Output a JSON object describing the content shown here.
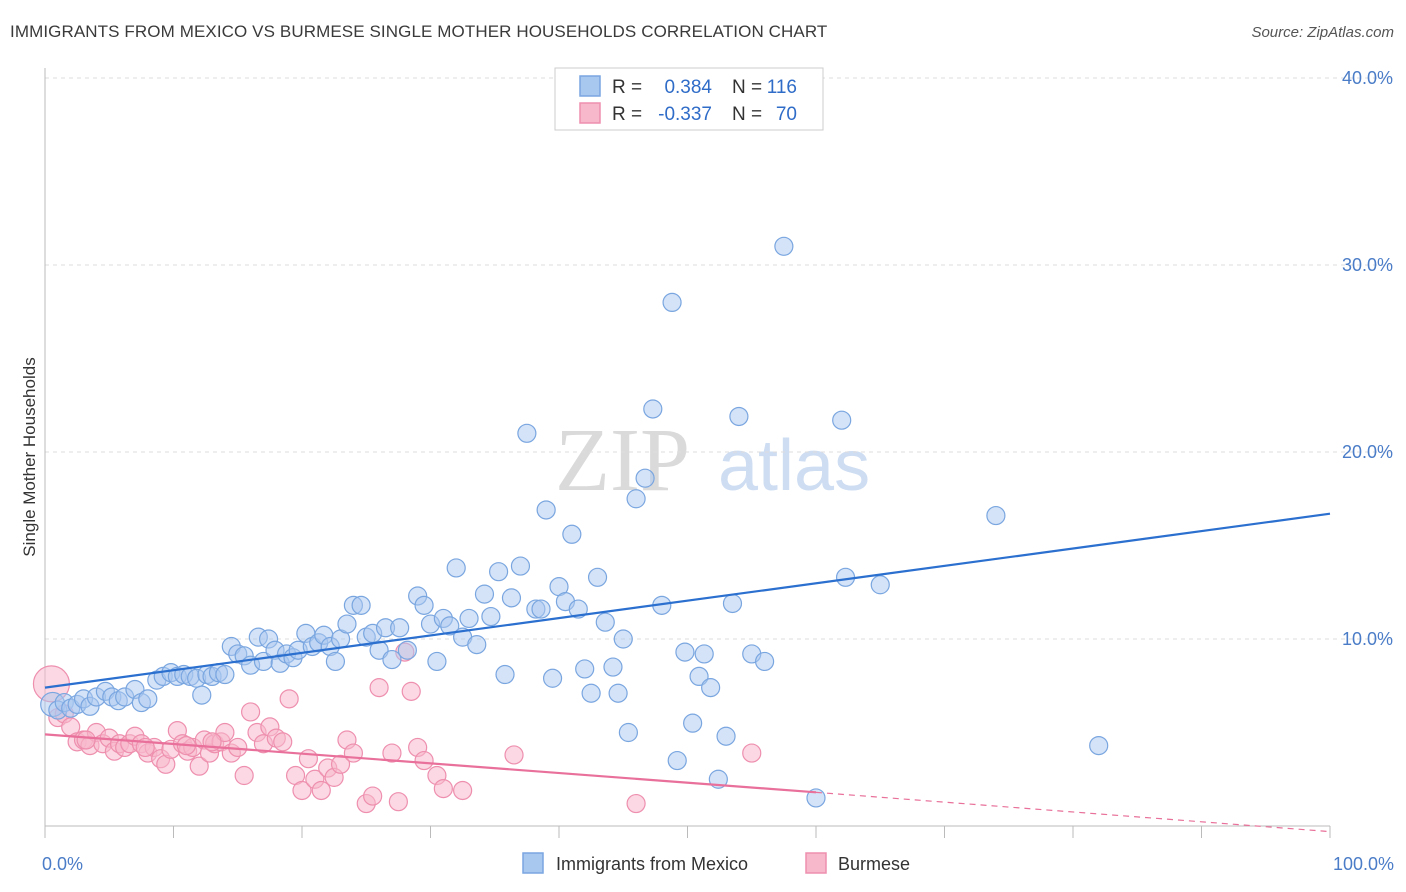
{
  "title": "IMMIGRANTS FROM MEXICO VS BURMESE SINGLE MOTHER HOUSEHOLDS CORRELATION CHART",
  "source": "Source: ZipAtlas.com",
  "watermark": {
    "zip": "ZIP",
    "atlas": "atlas"
  },
  "colors": {
    "mexico_fill": "#a9c8f0",
    "mexico_stroke": "#7aa6e0",
    "mexico_line": "#2b6fcf",
    "burmese_fill": "#f7b8cc",
    "burmese_stroke": "#ee8fae",
    "burmese_line": "#e8709a",
    "grid": "#dddddd",
    "tick_text": "#4a7cc7"
  },
  "legend": {
    "rows": [
      {
        "r_label": "R =",
        "r_value": "0.384",
        "n_label": "N =",
        "n_value": "116"
      },
      {
        "r_label": "R =",
        "r_value": "-0.337",
        "n_label": "N =",
        "n_value": "70"
      }
    ]
  },
  "chart_data": {
    "type": "scatter",
    "title": "IMMIGRANTS FROM MEXICO VS BURMESE SINGLE MOTHER HOUSEHOLDS CORRELATION CHART",
    "xlabel": "",
    "ylabel": "Single Mother Households",
    "xlim": [
      0,
      100
    ],
    "ylim": [
      0,
      40
    ],
    "x_tick_labels": [
      "0.0%",
      "100.0%"
    ],
    "y_ticks": [
      10,
      20,
      30,
      40
    ],
    "y_tick_labels": [
      "10.0%",
      "20.0%",
      "30.0%",
      "40.0%"
    ],
    "grid": true,
    "legend_position": "top-center",
    "series": [
      {
        "name": "Immigrants from Mexico",
        "r": 0.384,
        "n": 116,
        "trend": {
          "x": [
            0,
            100
          ],
          "y": [
            7.4,
            16.7
          ]
        },
        "points": [
          [
            0.6,
            6.5
          ],
          [
            1.0,
            6.2
          ],
          [
            1.5,
            6.6
          ],
          [
            2.0,
            6.3
          ],
          [
            2.5,
            6.5
          ],
          [
            3.0,
            6.8
          ],
          [
            3.5,
            6.4
          ],
          [
            4.0,
            6.9
          ],
          [
            4.7,
            7.2
          ],
          [
            5.2,
            6.9
          ],
          [
            5.7,
            6.7
          ],
          [
            6.2,
            6.9
          ],
          [
            7.0,
            7.3
          ],
          [
            7.5,
            6.6
          ],
          [
            8.0,
            6.8
          ],
          [
            8.7,
            7.8
          ],
          [
            9.2,
            8.0
          ],
          [
            9.8,
            8.2
          ],
          [
            10.3,
            8.0
          ],
          [
            10.8,
            8.1
          ],
          [
            11.3,
            8.0
          ],
          [
            11.8,
            7.9
          ],
          [
            12.2,
            7.0
          ],
          [
            12.6,
            8.1
          ],
          [
            13.0,
            8.0
          ],
          [
            13.5,
            8.2
          ],
          [
            14.0,
            8.1
          ],
          [
            14.5,
            9.6
          ],
          [
            15.0,
            9.2
          ],
          [
            15.5,
            9.1
          ],
          [
            16.0,
            8.6
          ],
          [
            16.6,
            10.1
          ],
          [
            17.0,
            8.8
          ],
          [
            17.4,
            10.0
          ],
          [
            17.9,
            9.4
          ],
          [
            18.3,
            8.7
          ],
          [
            18.8,
            9.2
          ],
          [
            19.3,
            9.0
          ],
          [
            19.7,
            9.4
          ],
          [
            20.3,
            10.3
          ],
          [
            20.8,
            9.6
          ],
          [
            21.3,
            9.8
          ],
          [
            21.7,
            10.2
          ],
          [
            22.2,
            9.6
          ],
          [
            22.6,
            8.8
          ],
          [
            23.0,
            10.0
          ],
          [
            23.5,
            10.8
          ],
          [
            24.0,
            11.8
          ],
          [
            24.6,
            11.8
          ],
          [
            25.0,
            10.1
          ],
          [
            25.5,
            10.3
          ],
          [
            26.0,
            9.4
          ],
          [
            26.5,
            10.6
          ],
          [
            27.0,
            8.9
          ],
          [
            27.6,
            10.6
          ],
          [
            28.2,
            9.4
          ],
          [
            29.0,
            12.3
          ],
          [
            29.5,
            11.8
          ],
          [
            30.0,
            10.8
          ],
          [
            30.5,
            8.8
          ],
          [
            31.0,
            11.1
          ],
          [
            31.5,
            10.7
          ],
          [
            32.0,
            13.8
          ],
          [
            32.5,
            10.1
          ],
          [
            33.0,
            11.1
          ],
          [
            33.6,
            9.7
          ],
          [
            34.2,
            12.4
          ],
          [
            34.7,
            11.2
          ],
          [
            35.3,
            13.6
          ],
          [
            35.8,
            8.1
          ],
          [
            36.3,
            12.2
          ],
          [
            37.0,
            13.9
          ],
          [
            37.5,
            21.0
          ],
          [
            38.2,
            11.6
          ],
          [
            38.6,
            11.6
          ],
          [
            39.0,
            16.9
          ],
          [
            39.5,
            7.9
          ],
          [
            40.0,
            12.8
          ],
          [
            40.5,
            12.0
          ],
          [
            41.0,
            15.6
          ],
          [
            41.5,
            11.6
          ],
          [
            42.0,
            8.4
          ],
          [
            42.5,
            7.1
          ],
          [
            43.0,
            13.3
          ],
          [
            43.6,
            10.9
          ],
          [
            44.2,
            8.5
          ],
          [
            44.6,
            7.1
          ],
          [
            45.0,
            10.0
          ],
          [
            45.4,
            5.0
          ],
          [
            46.0,
            17.5
          ],
          [
            46.7,
            18.6
          ],
          [
            47.3,
            22.3
          ],
          [
            48.0,
            11.8
          ],
          [
            48.8,
            28.0
          ],
          [
            49.2,
            3.5
          ],
          [
            49.8,
            9.3
          ],
          [
            50.4,
            5.5
          ],
          [
            50.9,
            8.0
          ],
          [
            51.3,
            9.2
          ],
          [
            51.8,
            7.4
          ],
          [
            52.4,
            2.5
          ],
          [
            53.0,
            4.8
          ],
          [
            53.5,
            11.9
          ],
          [
            54.0,
            21.9
          ],
          [
            55.0,
            9.2
          ],
          [
            56.0,
            8.8
          ],
          [
            57.5,
            31.0
          ],
          [
            60.0,
            1.5
          ],
          [
            62.0,
            21.7
          ],
          [
            62.3,
            13.3
          ],
          [
            65.0,
            12.9
          ],
          [
            74.0,
            16.6
          ],
          [
            82.0,
            4.3
          ]
        ]
      },
      {
        "name": "Burmese",
        "r": -0.337,
        "n": 70,
        "trend": {
          "x": [
            0,
            60
          ],
          "y": [
            4.9,
            1.8
          ]
        },
        "trend_dashed": {
          "x": [
            60,
            100
          ],
          "y": [
            1.8,
            -0.3
          ]
        },
        "points": [
          [
            0.5,
            7.6
          ],
          [
            1.0,
            5.8
          ],
          [
            1.5,
            6.0
          ],
          [
            2.0,
            5.3
          ],
          [
            2.5,
            4.5
          ],
          [
            3.0,
            4.6
          ],
          [
            3.5,
            4.3
          ],
          [
            4.0,
            5.0
          ],
          [
            4.5,
            4.4
          ],
          [
            5.0,
            4.7
          ],
          [
            5.4,
            4.0
          ],
          [
            5.8,
            4.4
          ],
          [
            6.2,
            4.2
          ],
          [
            6.6,
            4.4
          ],
          [
            7.0,
            4.8
          ],
          [
            7.5,
            4.4
          ],
          [
            8.0,
            3.9
          ],
          [
            8.5,
            4.2
          ],
          [
            9.0,
            3.6
          ],
          [
            9.4,
            3.3
          ],
          [
            9.8,
            4.1
          ],
          [
            10.3,
            5.1
          ],
          [
            10.7,
            4.4
          ],
          [
            11.1,
            4.0
          ],
          [
            11.5,
            4.2
          ],
          [
            12.0,
            3.2
          ],
          [
            12.4,
            4.6
          ],
          [
            12.8,
            3.9
          ],
          [
            13.2,
            4.4
          ],
          [
            13.7,
            4.5
          ],
          [
            14.0,
            5.0
          ],
          [
            14.5,
            3.9
          ],
          [
            15.0,
            4.2
          ],
          [
            15.5,
            2.7
          ],
          [
            16.0,
            6.1
          ],
          [
            16.5,
            5.0
          ],
          [
            17.0,
            4.4
          ],
          [
            17.5,
            5.3
          ],
          [
            18.0,
            4.7
          ],
          [
            18.5,
            4.5
          ],
          [
            19.0,
            6.8
          ],
          [
            19.5,
            2.7
          ],
          [
            20.0,
            1.9
          ],
          [
            20.5,
            3.6
          ],
          [
            21.0,
            2.5
          ],
          [
            21.5,
            1.9
          ],
          [
            22.0,
            3.1
          ],
          [
            22.5,
            2.6
          ],
          [
            23.0,
            3.3
          ],
          [
            23.5,
            4.6
          ],
          [
            24.0,
            3.9
          ],
          [
            25.0,
            1.2
          ],
          [
            25.5,
            1.6
          ],
          [
            26.0,
            7.4
          ],
          [
            27.0,
            3.9
          ],
          [
            27.5,
            1.3
          ],
          [
            28.0,
            9.3
          ],
          [
            28.5,
            7.2
          ],
          [
            29.0,
            4.2
          ],
          [
            29.5,
            3.5
          ],
          [
            30.5,
            2.7
          ],
          [
            31.0,
            2.0
          ],
          [
            32.5,
            1.9
          ],
          [
            36.5,
            3.8
          ],
          [
            46.0,
            1.2
          ],
          [
            55.0,
            3.9
          ],
          [
            3.2,
            4.6
          ],
          [
            7.8,
            4.2
          ],
          [
            13.0,
            4.5
          ],
          [
            11.0,
            4.3
          ]
        ]
      }
    ]
  },
  "bottom_legend": {
    "items": [
      {
        "label": "Immigrants from Mexico"
      },
      {
        "label": "Burmese"
      }
    ]
  }
}
